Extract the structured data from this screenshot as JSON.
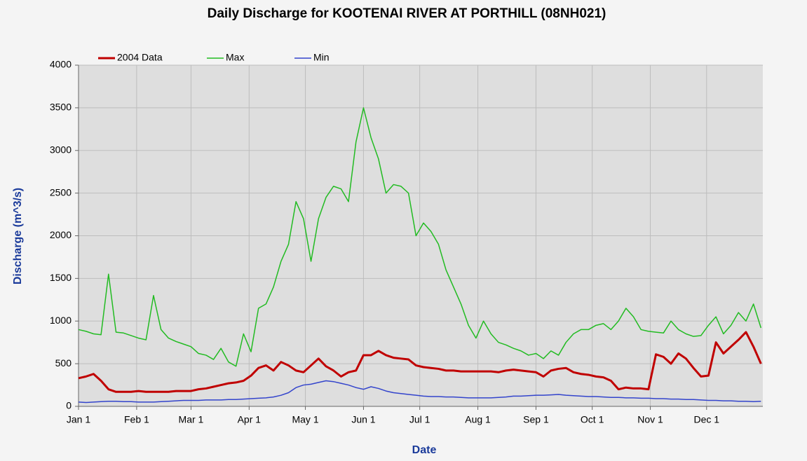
{
  "chart_data": {
    "type": "line",
    "title": "Daily Discharge for KOOTENAI RIVER AT PORTHILL (08NH021)",
    "x_label": "Date",
    "y_label": "Discharge (m^3/s)",
    "x": [
      0,
      4,
      8,
      12,
      16,
      20,
      24,
      28,
      32,
      36,
      40,
      44,
      48,
      52,
      56,
      60,
      64,
      68,
      72,
      76,
      80,
      84,
      88,
      92,
      96,
      100,
      104,
      108,
      112,
      116,
      120,
      124,
      128,
      132,
      136,
      140,
      144,
      148,
      152,
      156,
      160,
      164,
      168,
      172,
      176,
      180,
      184,
      188,
      192,
      196,
      200,
      204,
      208,
      212,
      216,
      220,
      224,
      228,
      232,
      236,
      240,
      244,
      248,
      252,
      256,
      260,
      264,
      268,
      272,
      276,
      280,
      284,
      288,
      292,
      296,
      300,
      304,
      308,
      312,
      316,
      320,
      324,
      328,
      332,
      336,
      340,
      344,
      348,
      352,
      356,
      360,
      364
    ],
    "xlim": [
      0,
      365
    ],
    "xticks": [
      {
        "value": 0,
        "label": "Jan 1"
      },
      {
        "value": 31,
        "label": "Feb 1"
      },
      {
        "value": 60,
        "label": "Mar 1"
      },
      {
        "value": 91,
        "label": "Apr 1"
      },
      {
        "value": 121,
        "label": "May 1"
      },
      {
        "value": 152,
        "label": "Jun 1"
      },
      {
        "value": 182,
        "label": "Jul 1"
      },
      {
        "value": 213,
        "label": "Aug 1"
      },
      {
        "value": 244,
        "label": "Sep 1"
      },
      {
        "value": 274,
        "label": "Oct 1"
      },
      {
        "value": 305,
        "label": "Nov 1"
      },
      {
        "value": 335,
        "label": "Dec 1"
      }
    ],
    "ylim": [
      0,
      4000
    ],
    "yticks": [
      0,
      500,
      1000,
      1500,
      2000,
      2500,
      3000,
      3500,
      4000
    ],
    "grid": true,
    "series": [
      {
        "name": "2004 Data",
        "color": "#c00000",
        "values": [
          330,
          350,
          380,
          300,
          200,
          170,
          170,
          170,
          180,
          170,
          170,
          170,
          170,
          180,
          180,
          180,
          200,
          210,
          230,
          250,
          270,
          280,
          300,
          360,
          450,
          480,
          420,
          520,
          480,
          420,
          400,
          480,
          560,
          470,
          420,
          350,
          400,
          420,
          600,
          600,
          650,
          600,
          570,
          560,
          550,
          480,
          460,
          450,
          440,
          420,
          420,
          410,
          410,
          410,
          410,
          410,
          400,
          420,
          430,
          420,
          410,
          400,
          350,
          420,
          440,
          450,
          400,
          380,
          370,
          350,
          340,
          300,
          200,
          220,
          210,
          210,
          200,
          610,
          580,
          500,
          620,
          560,
          450,
          350,
          360,
          750,
          620,
          700,
          780,
          870,
          700,
          500
        ]
      },
      {
        "name": "Max",
        "color": "#22bb22",
        "values": [
          900,
          880,
          850,
          840,
          1550,
          870,
          860,
          830,
          800,
          780,
          1300,
          900,
          800,
          760,
          730,
          700,
          620,
          600,
          550,
          680,
          520,
          470,
          850,
          640,
          1150,
          1200,
          1400,
          1700,
          1900,
          2400,
          2200,
          1700,
          2200,
          2450,
          2580,
          2550,
          2400,
          3100,
          3500,
          3150,
          2900,
          2500,
          2600,
          2580,
          2500,
          2000,
          2150,
          2050,
          1900,
          1600,
          1400,
          1200,
          950,
          800,
          1000,
          850,
          750,
          720,
          680,
          650,
          600,
          620,
          560,
          650,
          600,
          750,
          850,
          900,
          900,
          950,
          970,
          900,
          1000,
          1150,
          1050,
          900,
          880,
          870,
          860,
          1000,
          900,
          850,
          820,
          830,
          950,
          1050,
          850,
          950,
          1100,
          1000,
          1200,
          920
        ]
      },
      {
        "name": "Min",
        "color": "#3344cc",
        "values": [
          50,
          45,
          50,
          55,
          60,
          60,
          55,
          55,
          50,
          50,
          50,
          55,
          60,
          65,
          70,
          70,
          70,
          75,
          75,
          75,
          80,
          80,
          85,
          90,
          95,
          100,
          110,
          130,
          160,
          220,
          250,
          260,
          280,
          300,
          290,
          270,
          250,
          220,
          200,
          230,
          210,
          180,
          160,
          150,
          140,
          130,
          120,
          115,
          115,
          110,
          110,
          105,
          100,
          100,
          100,
          100,
          105,
          110,
          120,
          120,
          125,
          130,
          130,
          135,
          140,
          130,
          125,
          120,
          115,
          115,
          110,
          105,
          105,
          100,
          100,
          95,
          95,
          90,
          90,
          85,
          85,
          80,
          80,
          75,
          70,
          70,
          65,
          65,
          60,
          60,
          55,
          60
        ]
      }
    ]
  }
}
